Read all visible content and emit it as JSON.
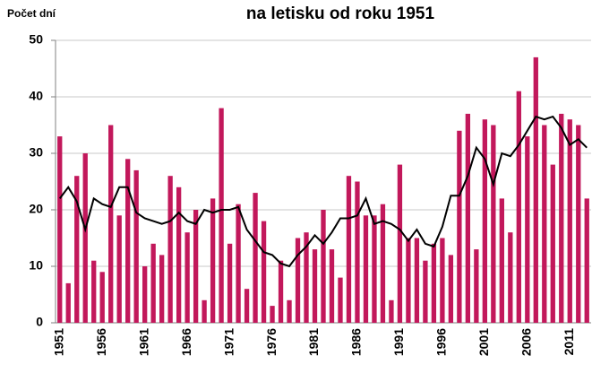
{
  "chart_data": {
    "type": "bar",
    "title": "na letisku od roku 1951",
    "y_label": "Počet dní",
    "categories": [
      "1951",
      null,
      null,
      null,
      null,
      "1956",
      null,
      null,
      null,
      null,
      "1961",
      null,
      null,
      null,
      null,
      "1966",
      null,
      null,
      null,
      null,
      "1971",
      null,
      null,
      null,
      null,
      "1976",
      null,
      null,
      null,
      null,
      "1981",
      null,
      null,
      null,
      null,
      "1986",
      null,
      null,
      null,
      null,
      "1991",
      null,
      null,
      null,
      null,
      "1996",
      null,
      null,
      null,
      null,
      "2001",
      null,
      null,
      null,
      null,
      "2006",
      null,
      null,
      null,
      null,
      "2011",
      null,
      null
    ],
    "series": [
      {
        "type": "bar",
        "color": "#c2185b",
        "values": [
          33,
          7,
          26,
          30,
          11,
          9,
          35,
          19,
          29,
          27,
          10,
          14,
          12,
          26,
          24,
          16,
          20,
          4,
          22,
          38,
          14,
          21,
          6,
          23,
          18,
          3,
          11,
          4,
          15,
          16,
          13,
          20,
          13,
          8,
          26,
          25,
          19,
          19,
          21,
          4,
          28,
          15,
          15,
          11,
          14,
          15,
          12,
          34,
          37,
          13,
          36,
          35,
          22,
          16,
          41,
          33,
          47,
          35,
          28,
          37,
          36,
          35,
          22
        ]
      },
      {
        "type": "line",
        "color": "#000000",
        "values": [
          22,
          24,
          21.5,
          16.5,
          22,
          21,
          20.5,
          24,
          24,
          19.5,
          18.5,
          18,
          17.5,
          18,
          19.5,
          18,
          17.5,
          20,
          19.5,
          20,
          20,
          20.5,
          16.5,
          14.5,
          12.5,
          12,
          10.5,
          10,
          12,
          13.5,
          15.5,
          14,
          16,
          18.5,
          18.5,
          19,
          22,
          17.5,
          18,
          17.5,
          16.5,
          14.5,
          16.5,
          14,
          13.5,
          17,
          22.5,
          22.5,
          26,
          31,
          29,
          24.5,
          30,
          29.5,
          31.5,
          34,
          36.5,
          36,
          36.5,
          34.5,
          31.5,
          32.5,
          31
        ]
      }
    ],
    "ylim": [
      0,
      50
    ],
    "yticks": [
      0,
      10,
      20,
      30,
      40,
      50
    ],
    "grid": true
  }
}
